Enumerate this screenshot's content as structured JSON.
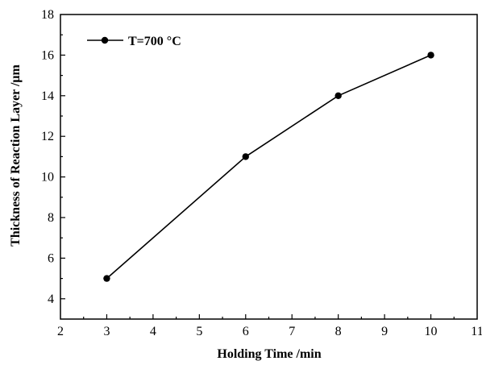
{
  "chart_data": {
    "type": "line",
    "xlabel": "Holding Time /min",
    "ylabel": "Thickness of Reaction Layer /μm",
    "xlim": [
      2,
      11
    ],
    "ylim": [
      3,
      18
    ],
    "x_ticks": [
      2,
      3,
      4,
      5,
      6,
      7,
      8,
      9,
      10,
      11
    ],
    "y_ticks": [
      4,
      6,
      8,
      10,
      12,
      14,
      16,
      18
    ],
    "grid": false,
    "legend_position": "top-left",
    "series": [
      {
        "name": "T=700 °C",
        "x": [
          3,
          6,
          8,
          10
        ],
        "y": [
          5,
          11,
          14,
          16
        ],
        "color": "#000000",
        "marker": "circle"
      }
    ]
  }
}
